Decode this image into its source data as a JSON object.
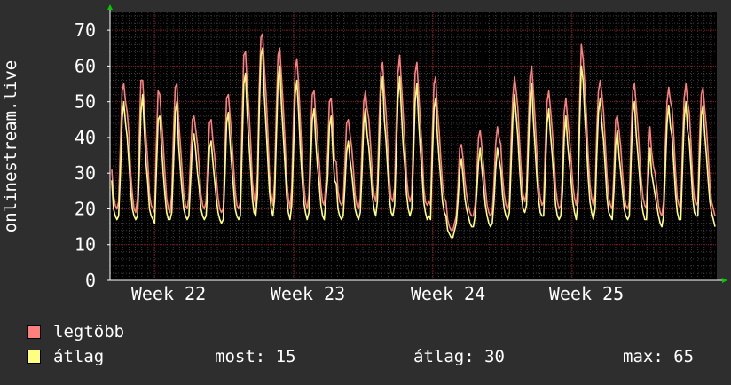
{
  "chart_data": {
    "type": "line",
    "ylabel": "onlinestream.live",
    "ylim": [
      0,
      75
    ],
    "y_ticks": [
      "0",
      "10",
      "20",
      "30",
      "40",
      "50",
      "60",
      "70"
    ],
    "x_ticks": [
      "Week 22",
      "Week 23",
      "Week 24",
      "Week 25"
    ],
    "grid": true,
    "colors": {
      "background": "#2e2e2e",
      "plot": "#000000",
      "max_series": "#ff7f7f",
      "avg_series": "#ffff7f",
      "grid": "#8b1a1a",
      "axis": "#ffffff",
      "arrow": "#00cc00"
    },
    "series": [
      {
        "name": "legtöbb",
        "values": [
          31,
          24,
          21,
          20,
          22,
          38,
          53,
          55,
          50,
          47,
          41,
          30,
          24,
          20,
          19,
          23,
          40,
          56,
          56,
          48,
          40,
          33,
          24,
          21,
          20,
          19,
          38,
          53,
          52,
          45,
          38,
          30,
          23,
          20,
          19,
          24,
          41,
          54,
          55,
          45,
          38,
          31,
          24,
          21,
          20,
          23,
          35,
          45,
          46,
          42,
          38,
          32,
          24,
          21,
          20,
          22,
          33,
          44,
          45,
          39,
          35,
          29,
          23,
          20,
          19,
          20,
          36,
          51,
          52,
          46,
          40,
          32,
          25,
          21,
          20,
          22,
          45,
          63,
          64,
          55,
          48,
          39,
          28,
          23,
          21,
          30,
          53,
          68,
          69,
          60,
          52,
          42,
          30,
          24,
          21,
          28,
          48,
          63,
          65,
          57,
          49,
          40,
          29,
          23,
          20,
          26,
          45,
          59,
          62,
          55,
          45,
          35,
          27,
          22,
          20,
          24,
          40,
          52,
          53,
          46,
          40,
          33,
          26,
          22,
          21,
          28,
          36,
          50,
          51,
          44,
          34,
          33,
          25,
          22,
          21,
          22,
          32,
          44,
          45,
          41,
          37,
          31,
          24,
          21,
          20,
          23,
          37,
          50,
          53,
          48,
          45,
          38,
          30,
          24,
          22,
          27,
          45,
          58,
          61,
          53,
          47,
          38,
          28,
          23,
          22,
          26,
          44,
          58,
          63,
          55,
          47,
          39,
          29,
          24,
          22,
          24,
          42,
          58,
          61,
          53,
          45,
          37,
          26,
          22,
          21,
          22,
          21,
          41,
          55,
          57,
          48,
          42,
          34,
          27,
          23,
          22,
          17,
          15,
          14,
          14,
          16,
          18,
          26,
          37,
          38,
          34,
          28,
          24,
          21,
          19,
          18,
          18,
          21,
          30,
          40,
          42,
          37,
          32,
          26,
          21,
          19,
          18,
          19,
          27,
          38,
          43,
          40,
          38,
          29,
          24,
          21,
          20,
          22,
          39,
          51,
          57,
          53,
          48,
          38,
          30,
          24,
          22,
          25,
          42,
          57,
          60,
          53,
          45,
          36,
          27,
          23,
          21,
          22,
          38,
          50,
          53,
          48,
          42,
          35,
          26,
          22,
          20,
          21,
          30,
          47,
          51,
          45,
          40,
          34,
          27,
          23,
          21,
          26,
          50,
          66,
          62,
          55,
          46,
          35,
          27,
          23,
          21,
          24,
          42,
          53,
          56,
          52,
          47,
          38,
          29,
          23,
          21,
          20,
          30,
          45,
          46,
          42,
          37,
          30,
          24,
          21,
          20,
          22,
          40,
          53,
          55,
          49,
          43,
          35,
          28,
          23,
          21,
          20,
          35,
          43,
          36,
          32,
          30,
          26,
          21,
          19,
          18,
          22,
          38,
          50,
          54,
          50,
          48,
          40,
          30,
          23,
          21,
          20,
          38,
          51,
          55,
          50,
          47,
          38,
          28,
          23,
          21,
          22,
          40,
          52,
          54,
          48,
          43,
          35,
          27,
          22,
          20,
          18
        ]
      },
      {
        "name": "átlag",
        "values": [
          28,
          20,
          18,
          17,
          18,
          30,
          45,
          50,
          44,
          40,
          33,
          25,
          20,
          18,
          17,
          18,
          30,
          47,
          52,
          42,
          33,
          27,
          20,
          18,
          17,
          16,
          30,
          45,
          46,
          38,
          30,
          24,
          19,
          17,
          17,
          19,
          32,
          47,
          50,
          38,
          31,
          25,
          20,
          18,
          17,
          18,
          28,
          38,
          41,
          36,
          30,
          26,
          20,
          18,
          17,
          18,
          26,
          37,
          39,
          33,
          28,
          23,
          19,
          17,
          16,
          17,
          29,
          44,
          47,
          39,
          32,
          26,
          20,
          18,
          17,
          18,
          36,
          55,
          58,
          47,
          39,
          31,
          23,
          19,
          18,
          24,
          46,
          63,
          65,
          52,
          43,
          34,
          25,
          20,
          18,
          23,
          40,
          56,
          60,
          49,
          41,
          33,
          24,
          19,
          17,
          21,
          36,
          52,
          56,
          47,
          37,
          29,
          22,
          19,
          17,
          19,
          32,
          45,
          48,
          39,
          32,
          27,
          21,
          18,
          17,
          23,
          29,
          43,
          46,
          36,
          28,
          27,
          20,
          18,
          17,
          18,
          26,
          36,
          39,
          34,
          30,
          25,
          20,
          18,
          17,
          19,
          30,
          44,
          48,
          41,
          37,
          31,
          24,
          20,
          18,
          22,
          37,
          52,
          57,
          45,
          39,
          31,
          23,
          19,
          18,
          21,
          36,
          51,
          57,
          47,
          38,
          32,
          24,
          20,
          18,
          20,
          34,
          50,
          55,
          45,
          37,
          30,
          22,
          19,
          17,
          18,
          17,
          34,
          48,
          51,
          41,
          34,
          28,
          22,
          19,
          18,
          14,
          13,
          12,
          12,
          14,
          16,
          22,
          31,
          34,
          29,
          23,
          20,
          18,
          16,
          15,
          15,
          18,
          25,
          33,
          37,
          31,
          26,
          21,
          18,
          16,
          15,
          16,
          22,
          31,
          37,
          34,
          31,
          24,
          20,
          18,
          17,
          19,
          32,
          45,
          52,
          46,
          40,
          31,
          24,
          20,
          19,
          21,
          35,
          50,
          55,
          45,
          37,
          29,
          23,
          19,
          18,
          18,
          31,
          44,
          48,
          41,
          35,
          28,
          21,
          18,
          17,
          18,
          25,
          40,
          46,
          38,
          33,
          28,
          22,
          19,
          17,
          22,
          44,
          60,
          56,
          46,
          38,
          29,
          22,
          19,
          17,
          20,
          35,
          47,
          51,
          44,
          39,
          31,
          23,
          19,
          18,
          17,
          25,
          38,
          42,
          35,
          30,
          25,
          20,
          18,
          17,
          18,
          33,
          47,
          50,
          41,
          35,
          29,
          22,
          19,
          17,
          17,
          28,
          37,
          30,
          27,
          24,
          21,
          18,
          16,
          15,
          18,
          31,
          44,
          49,
          43,
          40,
          32,
          24,
          19,
          17,
          17,
          31,
          45,
          50,
          42,
          39,
          31,
          23,
          19,
          18,
          18,
          33,
          46,
          49,
          41,
          35,
          28,
          22,
          19,
          17,
          15
        ]
      }
    ]
  },
  "legend": {
    "items": [
      {
        "label": "legtöbb",
        "color": "#ff7f7f"
      },
      {
        "label": "átlag",
        "color": "#ffff7f"
      }
    ],
    "stats": {
      "now": "most: 15",
      "avg": "átlag: 30",
      "max": "max: 65"
    }
  }
}
